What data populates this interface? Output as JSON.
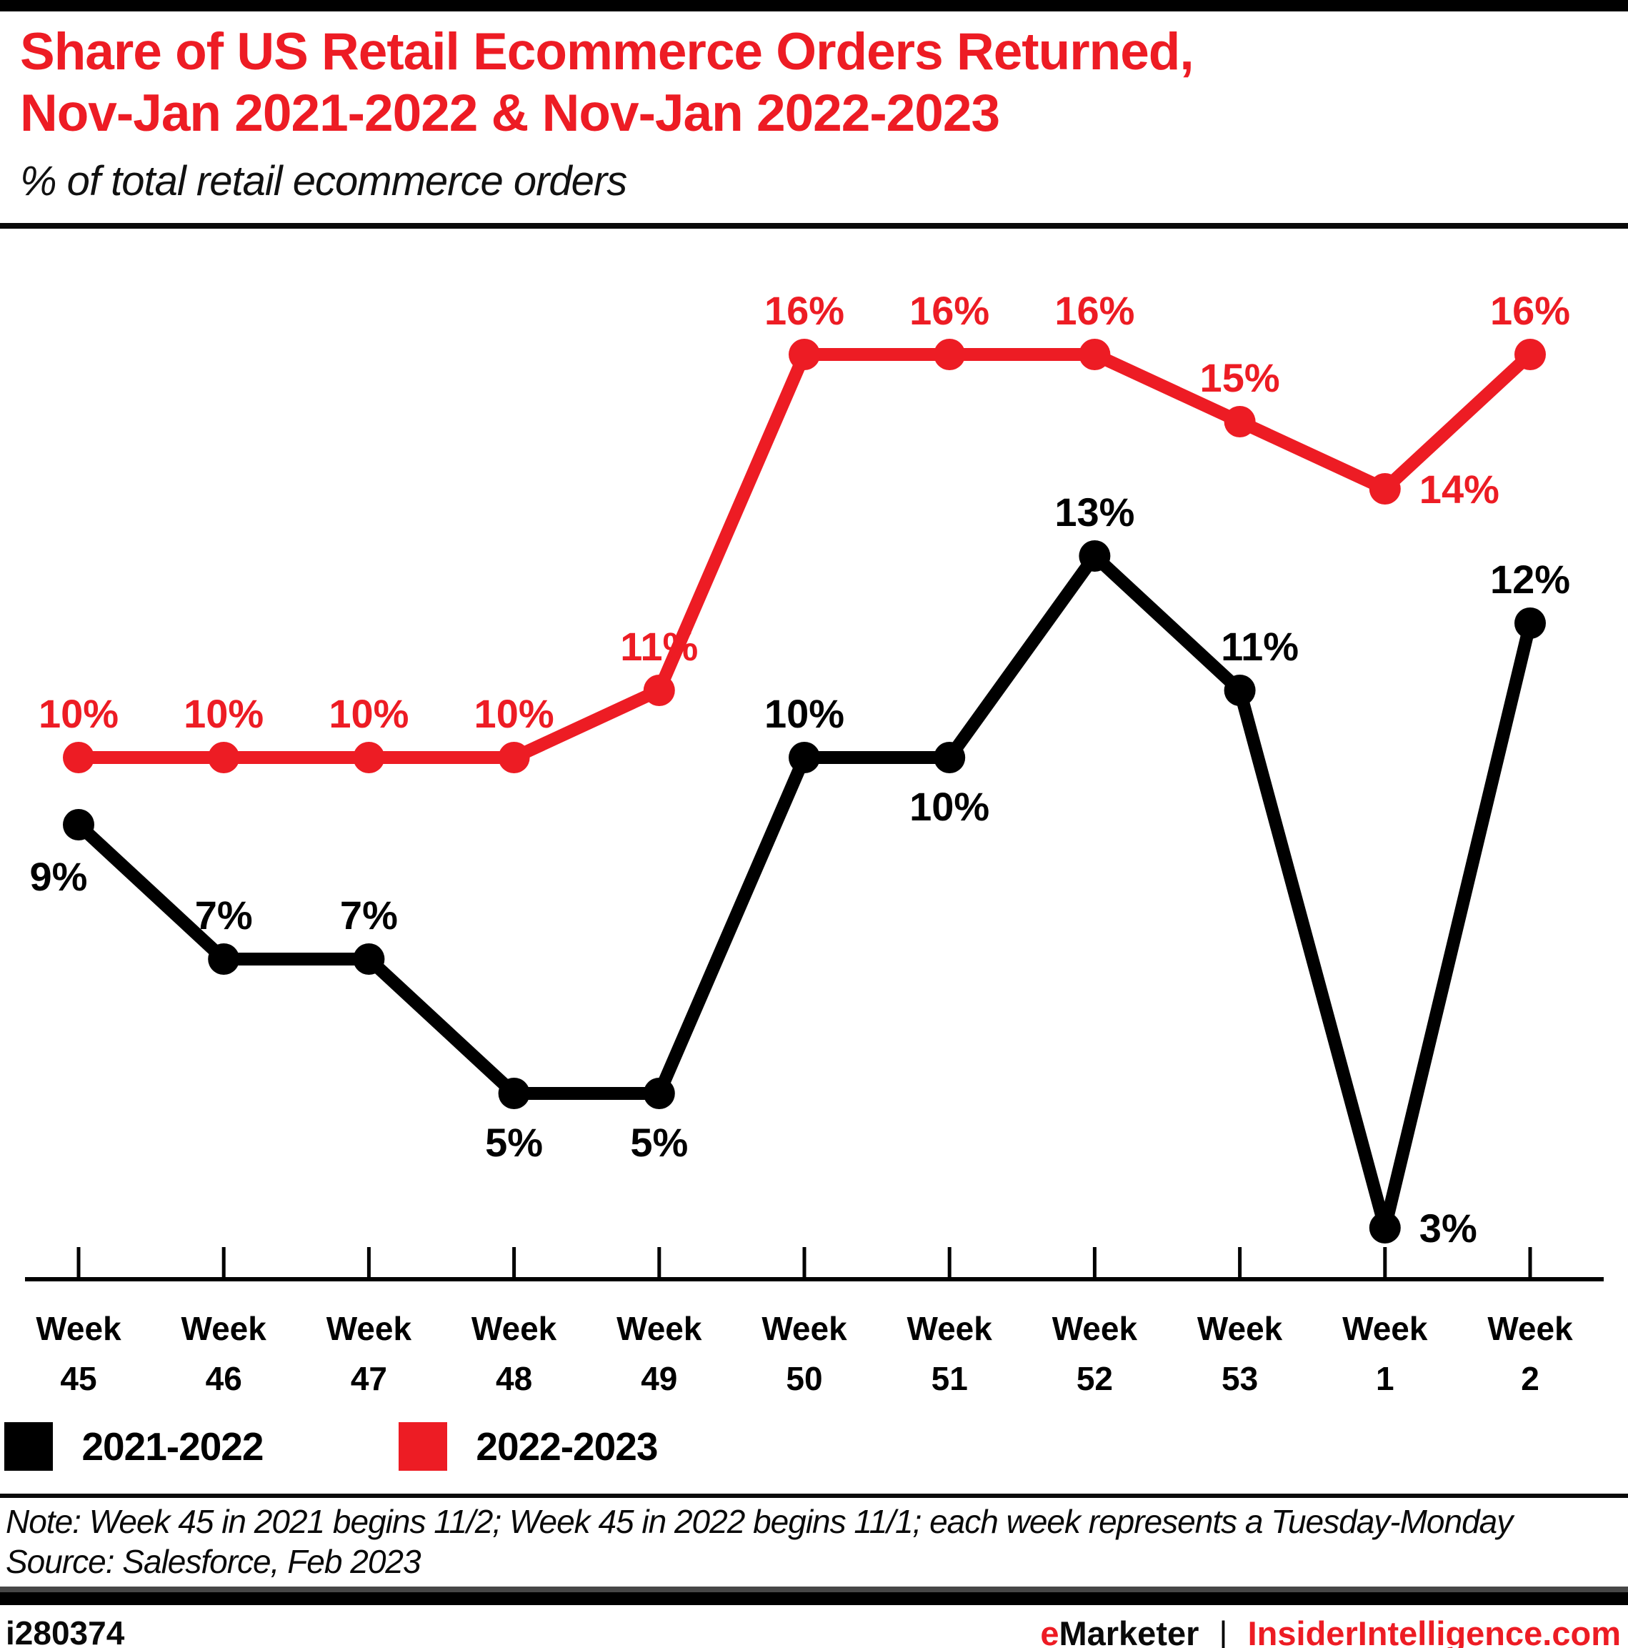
{
  "header": {
    "title_line1": "Share of US Retail Ecommerce Orders Returned,",
    "title_line2": "Nov-Jan 2021-2022 & Nov-Jan 2022-2023",
    "subtitle": "% of total retail ecommerce orders"
  },
  "chart_data": {
    "type": "line",
    "categories": [
      "Week 45",
      "Week 46",
      "Week 47",
      "Week 48",
      "Week 49",
      "Week 50",
      "Week 51",
      "Week 52",
      "Week 53",
      "Week 1",
      "Week 2"
    ],
    "series": [
      {
        "name": "2021-2022",
        "color": "#000000",
        "values": [
          9,
          7,
          7,
          5,
          5,
          10,
          10,
          13,
          11,
          3,
          12
        ],
        "label_positions": [
          "below-left",
          "above",
          "above",
          "below",
          "below",
          "above",
          "below",
          "above",
          "above-right",
          "right",
          "above"
        ]
      },
      {
        "name": "2022-2023",
        "color": "#ED1C24",
        "values": [
          10,
          10,
          10,
          10,
          11,
          16,
          16,
          16,
          15,
          14,
          16
        ],
        "label_positions": [
          "above",
          "above",
          "above",
          "above",
          "above",
          "above",
          "above",
          "above",
          "above",
          "right",
          "above"
        ]
      }
    ],
    "value_suffix": "%",
    "ylim": [
      2,
      17
    ],
    "grid": false,
    "legend_position": "bottom",
    "title": "Share of US Retail Ecommerce Orders Returned, Nov-Jan 2021-2022 & Nov-Jan 2022-2023",
    "xlabel": "",
    "ylabel": "% of total retail ecommerce orders"
  },
  "legend": {
    "items": [
      {
        "label": "2021-2022",
        "color": "#000000"
      },
      {
        "label": "2022-2023",
        "color": "#ED1C24"
      }
    ]
  },
  "notes": {
    "note": "Note: Week 45 in 2021 begins 11/2; Week 45 in 2022 begins 11/1; each week represents a Tuesday-Monday",
    "source": "Source: Salesforce, Feb 2023"
  },
  "footer": {
    "chart_id": "i280374",
    "brand_first_letter": "e",
    "brand_rest": "Marketer",
    "separator": "|",
    "site": "InsiderIntelligence.com"
  },
  "colors": {
    "accent_red": "#ED1C24",
    "black": "#000000"
  }
}
